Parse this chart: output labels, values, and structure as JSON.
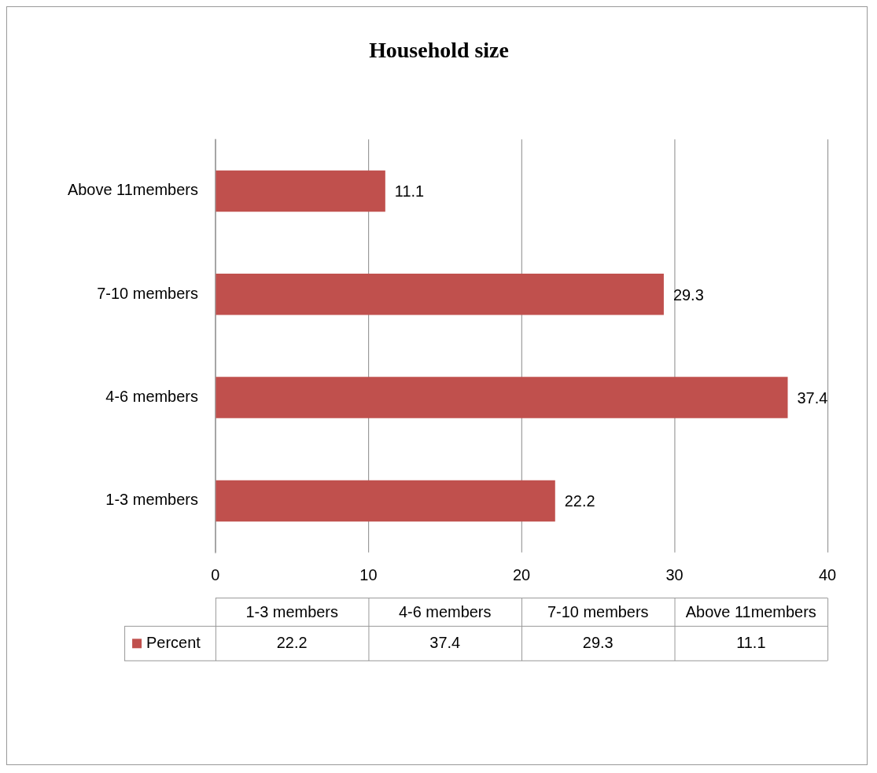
{
  "chart_data": {
    "type": "bar",
    "orientation": "horizontal",
    "title": "Household size",
    "categories": [
      "Above 11members",
      "7-10 members",
      "4-6 members",
      "1-3 members"
    ],
    "series": [
      {
        "name": "Percent",
        "color": "#c0504d",
        "values": [
          11.1,
          29.3,
          37.4,
          22.2
        ],
        "value_labels": [
          "11.1",
          "29.3",
          "37.4",
          "22.2"
        ]
      }
    ],
    "xlim": [
      0,
      40
    ],
    "xticks": [
      0,
      10,
      20,
      30,
      40
    ],
    "grid": "x",
    "legend": "bottom"
  }
}
